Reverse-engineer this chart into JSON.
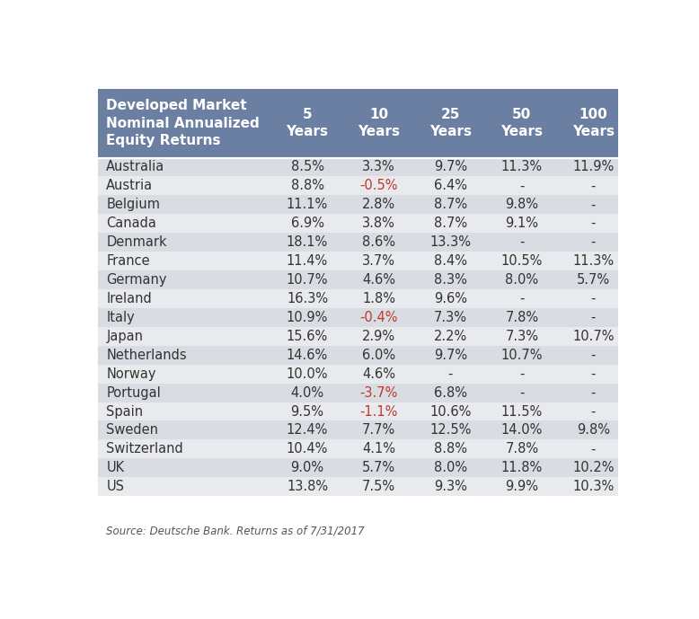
{
  "title_line1": "Developed Market",
  "title_line2": "Nominal Annualized",
  "title_line3": "Equity Returns",
  "col_headers": [
    "5\nYears",
    "10\nYears",
    "25\nYears",
    "50\nYears",
    "100\nYears"
  ],
  "countries": [
    "Australia",
    "Austria",
    "Belgium",
    "Canada",
    "Denmark",
    "France",
    "Germany",
    "Ireland",
    "Italy",
    "Japan",
    "Netherlands",
    "Norway",
    "Portugal",
    "Spain",
    "Sweden",
    "Switzerland",
    "UK",
    "US"
  ],
  "data": [
    [
      "8.5%",
      "3.3%",
      "9.7%",
      "11.3%",
      "11.9%"
    ],
    [
      "8.8%",
      "-0.5%",
      "6.4%",
      "-",
      "-"
    ],
    [
      "11.1%",
      "2.8%",
      "8.7%",
      "9.8%",
      "-"
    ],
    [
      "6.9%",
      "3.8%",
      "8.7%",
      "9.1%",
      "-"
    ],
    [
      "18.1%",
      "8.6%",
      "13.3%",
      "-",
      "-"
    ],
    [
      "11.4%",
      "3.7%",
      "8.4%",
      "10.5%",
      "11.3%"
    ],
    [
      "10.7%",
      "4.6%",
      "8.3%",
      "8.0%",
      "5.7%"
    ],
    [
      "16.3%",
      "1.8%",
      "9.6%",
      "-",
      "-"
    ],
    [
      "10.9%",
      "-0.4%",
      "7.3%",
      "7.8%",
      "-"
    ],
    [
      "15.6%",
      "2.9%",
      "2.2%",
      "7.3%",
      "10.7%"
    ],
    [
      "14.6%",
      "6.0%",
      "9.7%",
      "10.7%",
      "-"
    ],
    [
      "10.0%",
      "4.6%",
      "-",
      "-",
      "-"
    ],
    [
      "4.0%",
      "-3.7%",
      "6.8%",
      "-",
      "-"
    ],
    [
      "9.5%",
      "-1.1%",
      "10.6%",
      "11.5%",
      "-"
    ],
    [
      "12.4%",
      "7.7%",
      "12.5%",
      "14.0%",
      "9.8%"
    ],
    [
      "10.4%",
      "4.1%",
      "8.8%",
      "7.8%",
      "-"
    ],
    [
      "9.0%",
      "5.7%",
      "8.0%",
      "11.8%",
      "10.2%"
    ],
    [
      "13.8%",
      "7.5%",
      "9.3%",
      "9.9%",
      "10.3%"
    ]
  ],
  "source_text": "Source: Deutsche Bank. Returns as of 7/31/2017",
  "header_bg_color": "#6b7fa3",
  "header_text_color": "#ffffff",
  "odd_row_color": "#d9dce3",
  "even_row_color": "#e8eaed",
  "negative_color": "#c0392b",
  "normal_text_color": "#333333",
  "fig_bg_color": "#ffffff",
  "source_color": "#555555"
}
